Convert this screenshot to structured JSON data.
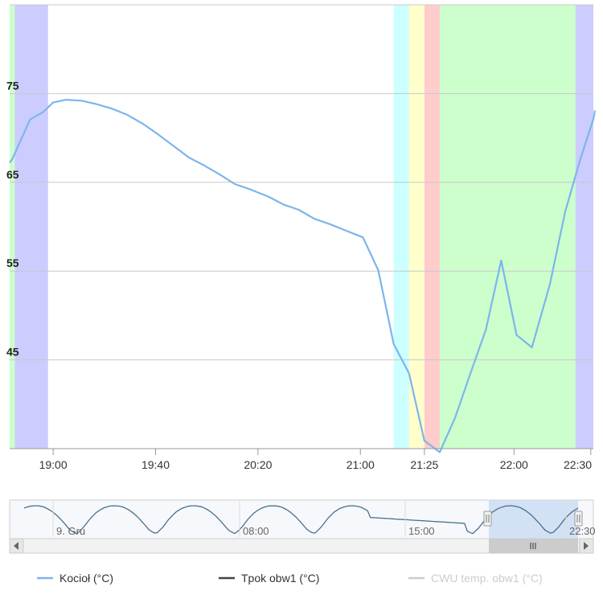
{
  "chart_data": {
    "type": "line",
    "x_unit": "time (hh:mm)",
    "xlim": [
      "18:43",
      "22:31"
    ],
    "ylim": [
      35,
      85
    ],
    "grid": true,
    "legend_placement": "bottom",
    "y_ticks": [
      {
        "value": 45,
        "label": "45"
      },
      {
        "value": 55,
        "label": "55"
      },
      {
        "value": 65,
        "label": "65"
      },
      {
        "value": 75,
        "label": "75"
      }
    ],
    "x_ticks": [
      {
        "time": "19:00",
        "label": "19:00"
      },
      {
        "time": "19:40",
        "label": "19:40"
      },
      {
        "time": "20:20",
        "label": "20:20"
      },
      {
        "time": "21:00",
        "label": "21:00"
      },
      {
        "time": "21:25",
        "label": "21:25"
      },
      {
        "time": "22:00",
        "label": "22:00"
      },
      {
        "time": "22:30",
        "label": "22:30"
      }
    ],
    "bands": [
      {
        "start": "18:43",
        "end": "18:45",
        "color": "#ccffcc"
      },
      {
        "start": "18:45",
        "end": "18:58",
        "color": "#ccccff"
      },
      {
        "start": "21:13",
        "end": "21:19",
        "color": "#ccffff"
      },
      {
        "start": "21:19",
        "end": "21:25",
        "color": "#ffffcc"
      },
      {
        "start": "21:25",
        "end": "21:31",
        "color": "#ffcccc"
      },
      {
        "start": "21:31",
        "end": "22:24",
        "color": "#ccffcc"
      },
      {
        "start": "22:24",
        "end": "22:31",
        "color": "#ccccff"
      }
    ],
    "series": [
      {
        "name": "Kocioł (°C)",
        "color": "#7cb5ec",
        "visible": true,
        "points": [
          [
            "18:43",
            67.2
          ],
          [
            "18:44",
            67.6
          ],
          [
            "18:51",
            72.1
          ],
          [
            "18:56",
            72.9
          ],
          [
            "19:00",
            74.0
          ],
          [
            "19:05",
            74.3
          ],
          [
            "19:11",
            74.2
          ],
          [
            "19:17",
            73.8
          ],
          [
            "19:23",
            73.3
          ],
          [
            "19:29",
            72.6
          ],
          [
            "19:35",
            71.6
          ],
          [
            "19:41",
            70.4
          ],
          [
            "19:47",
            69.1
          ],
          [
            "19:53",
            67.8
          ],
          [
            "19:59",
            66.9
          ],
          [
            "20:05",
            65.9
          ],
          [
            "20:11",
            64.8
          ],
          [
            "20:17",
            64.2
          ],
          [
            "20:24",
            63.4
          ],
          [
            "20:30",
            62.5
          ],
          [
            "20:36",
            61.9
          ],
          [
            "20:42",
            60.9
          ],
          [
            "20:48",
            60.3
          ],
          [
            "20:54",
            59.6
          ],
          [
            "21:01",
            58.8
          ],
          [
            "21:07",
            55.1
          ],
          [
            "21:13",
            46.8
          ],
          [
            "21:19",
            43.5
          ],
          [
            "21:25",
            35.9
          ],
          [
            "21:31",
            34.6
          ],
          [
            "21:37",
            38.5
          ],
          [
            "21:43",
            43.5
          ],
          [
            "21:49",
            48.4
          ],
          [
            "21:55",
            56.2
          ],
          [
            "22:01",
            47.8
          ],
          [
            "22:07",
            46.4
          ],
          [
            "22:14",
            53.5
          ],
          [
            "22:20",
            61.7
          ],
          [
            "22:26",
            67.7
          ],
          [
            "22:31",
            72.1
          ],
          [
            "22:36",
            73.1
          ]
        ]
      },
      {
        "name": "Tpok obw1 (°C)",
        "color": "#434348",
        "visible": true,
        "points": []
      },
      {
        "name": "CWU temp. obw1 (°C)",
        "color": "#cccccc",
        "visible": false,
        "points": []
      }
    ],
    "navigator": {
      "tick_labels": [
        "9. Gru",
        "08:00",
        "15:00",
        "22:30"
      ]
    }
  }
}
